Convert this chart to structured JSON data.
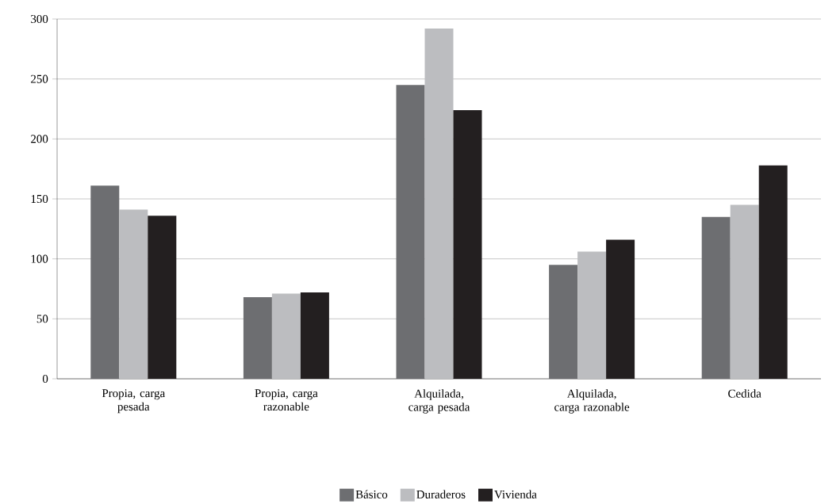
{
  "chart_data": {
    "type": "bar",
    "categories": [
      "Propia, carga pesada",
      "Propia, carga razonable",
      "Alquilada, carga pesada",
      "Alquilada, carga razonable",
      "Cedida"
    ],
    "series": [
      {
        "name": "Básico",
        "color": "#6d6e71",
        "values": [
          161,
          68,
          245,
          95,
          135
        ]
      },
      {
        "name": "Duraderos",
        "color": "#bcbdc0",
        "values": [
          141,
          71,
          292,
          106,
          145
        ]
      },
      {
        "name": "Vivienda",
        "color": "#231f20",
        "values": [
          136,
          72,
          224,
          116,
          178
        ]
      }
    ],
    "ylim": [
      0,
      300
    ],
    "yticks": [
      0,
      50,
      100,
      150,
      200,
      250,
      300
    ],
    "grid": "y",
    "legend": "bottom"
  }
}
